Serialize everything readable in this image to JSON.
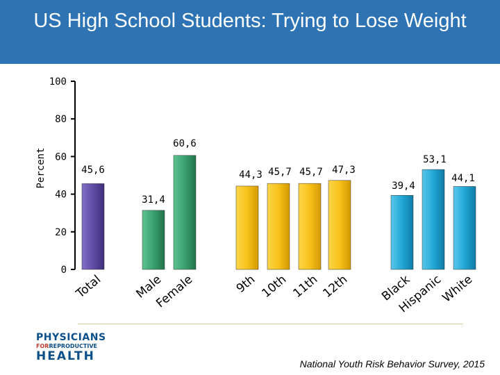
{
  "header": {
    "title": "US High School Students:  Trying to Lose Weight"
  },
  "chart_data": {
    "type": "bar",
    "title": "US High School Students:  Trying to Lose Weight",
    "xlabel": "",
    "ylabel": "Percent",
    "ylim": [
      0,
      100
    ],
    "yticks": [
      0,
      20,
      40,
      60,
      80,
      100
    ],
    "grid": false,
    "categories": [
      "Total",
      "Male",
      "Female",
      "9th",
      "10th",
      "11th",
      "12th",
      "Black",
      "Hispanic",
      "White"
    ],
    "values": [
      45.6,
      31.4,
      60.6,
      44.3,
      45.7,
      45.7,
      47.3,
      39.4,
      53.1,
      44.1
    ],
    "data_labels": [
      "45,6",
      "31,4",
      "60,6",
      "44,3",
      "45,7",
      "45,7",
      "47,3",
      "39,4",
      "53,1",
      "44,1"
    ],
    "groups": [
      "total",
      "sex",
      "sex",
      "grade",
      "grade",
      "grade",
      "grade",
      "race",
      "race",
      "race"
    ],
    "colors": {
      "total": "#5f4ca5",
      "sex": "#3aa06e",
      "grade": "#f7c21a",
      "race": "#21a8d6"
    }
  },
  "footer": {
    "logo_line1": "PHYSICIANS",
    "logo_line2_a": "FOR",
    "logo_line2_b": "REPRODUCTIVE",
    "logo_line3": "HEALTH",
    "source": "National Youth Risk Behavior Survey, 2015"
  }
}
